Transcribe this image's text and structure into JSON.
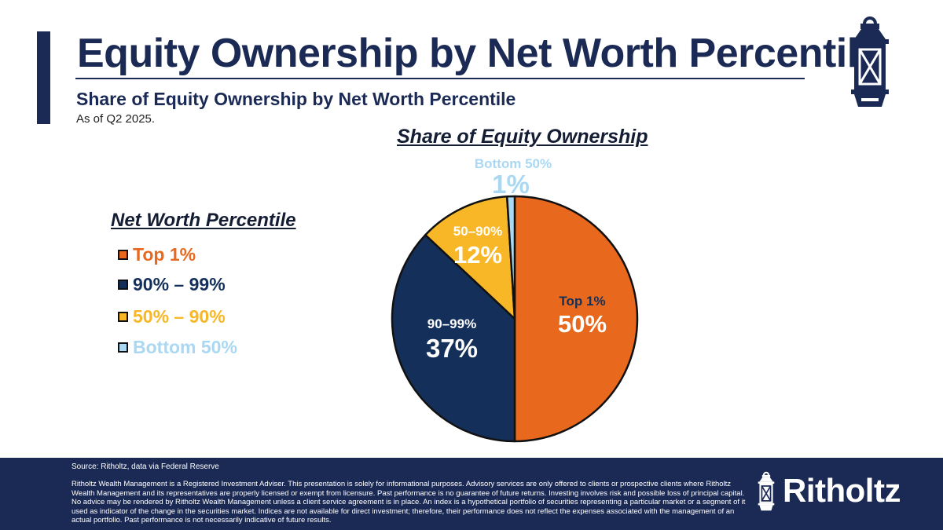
{
  "header": {
    "title": "Equity Ownership by Net Worth Percentile",
    "subtitle": "Share of Equity Ownership by Net Worth Percentile",
    "as_of": "As of Q2 2025."
  },
  "colors": {
    "navy": "#1b2a55",
    "top1": "#e8691e",
    "p90_99": "#14305a",
    "p50_90": "#f8b727",
    "bottom50": "#aad8f2"
  },
  "legend": {
    "title": "Net Worth Percentile",
    "items": [
      {
        "label": "Top 1%",
        "color": "#e8691e"
      },
      {
        "label": "90% – 99%",
        "color": "#14305a"
      },
      {
        "label": "50% – 90%",
        "color": "#f8b727"
      },
      {
        "label": "Bottom 50%",
        "color": "#aad8f2"
      }
    ]
  },
  "chart_data": {
    "type": "pie",
    "title": "Share of Equity Ownership",
    "slices": [
      {
        "name": "Top 1%",
        "value": 50,
        "label": "Top 1%",
        "value_label": "50%",
        "color": "#e8691e"
      },
      {
        "name": "90–99%",
        "value": 37,
        "label": "90–99%",
        "value_label": "37%",
        "color": "#14305a"
      },
      {
        "name": "50–90%",
        "value": 12,
        "label": "50–90%",
        "value_label": "12%",
        "color": "#f8b727"
      },
      {
        "name": "Bottom 50%",
        "value": 1,
        "label": "Bottom 50%",
        "value_label": "1%",
        "color": "#aad8f2"
      }
    ]
  },
  "footer": {
    "source": "Source: Ritholtz, data via Federal Reserve",
    "disclaimer": "Ritholtz Wealth Management is a Registered Investment Adviser. This presentation is solely for informational purposes. Advisory services are only offered to clients or prospective clients where Ritholtz Wealth Management and its representatives are properly licensed or exempt from licensure. Past performance is no guarantee of future returns. Investing involves risk and possible loss of principal capital. No advice may be rendered by Ritholtz Wealth Management unless a client service agreement is in place. An index is a hypothetical portfolio of securities representing a particular market or a segment of it used as indicator of the change in the securities market. Indices are not available for direct investment; therefore, their performance does not reflect the expenses associated with the management of an actual portfolio. Past performance is not necessarily indicative of future results.",
    "brand": "Ritholtz"
  }
}
